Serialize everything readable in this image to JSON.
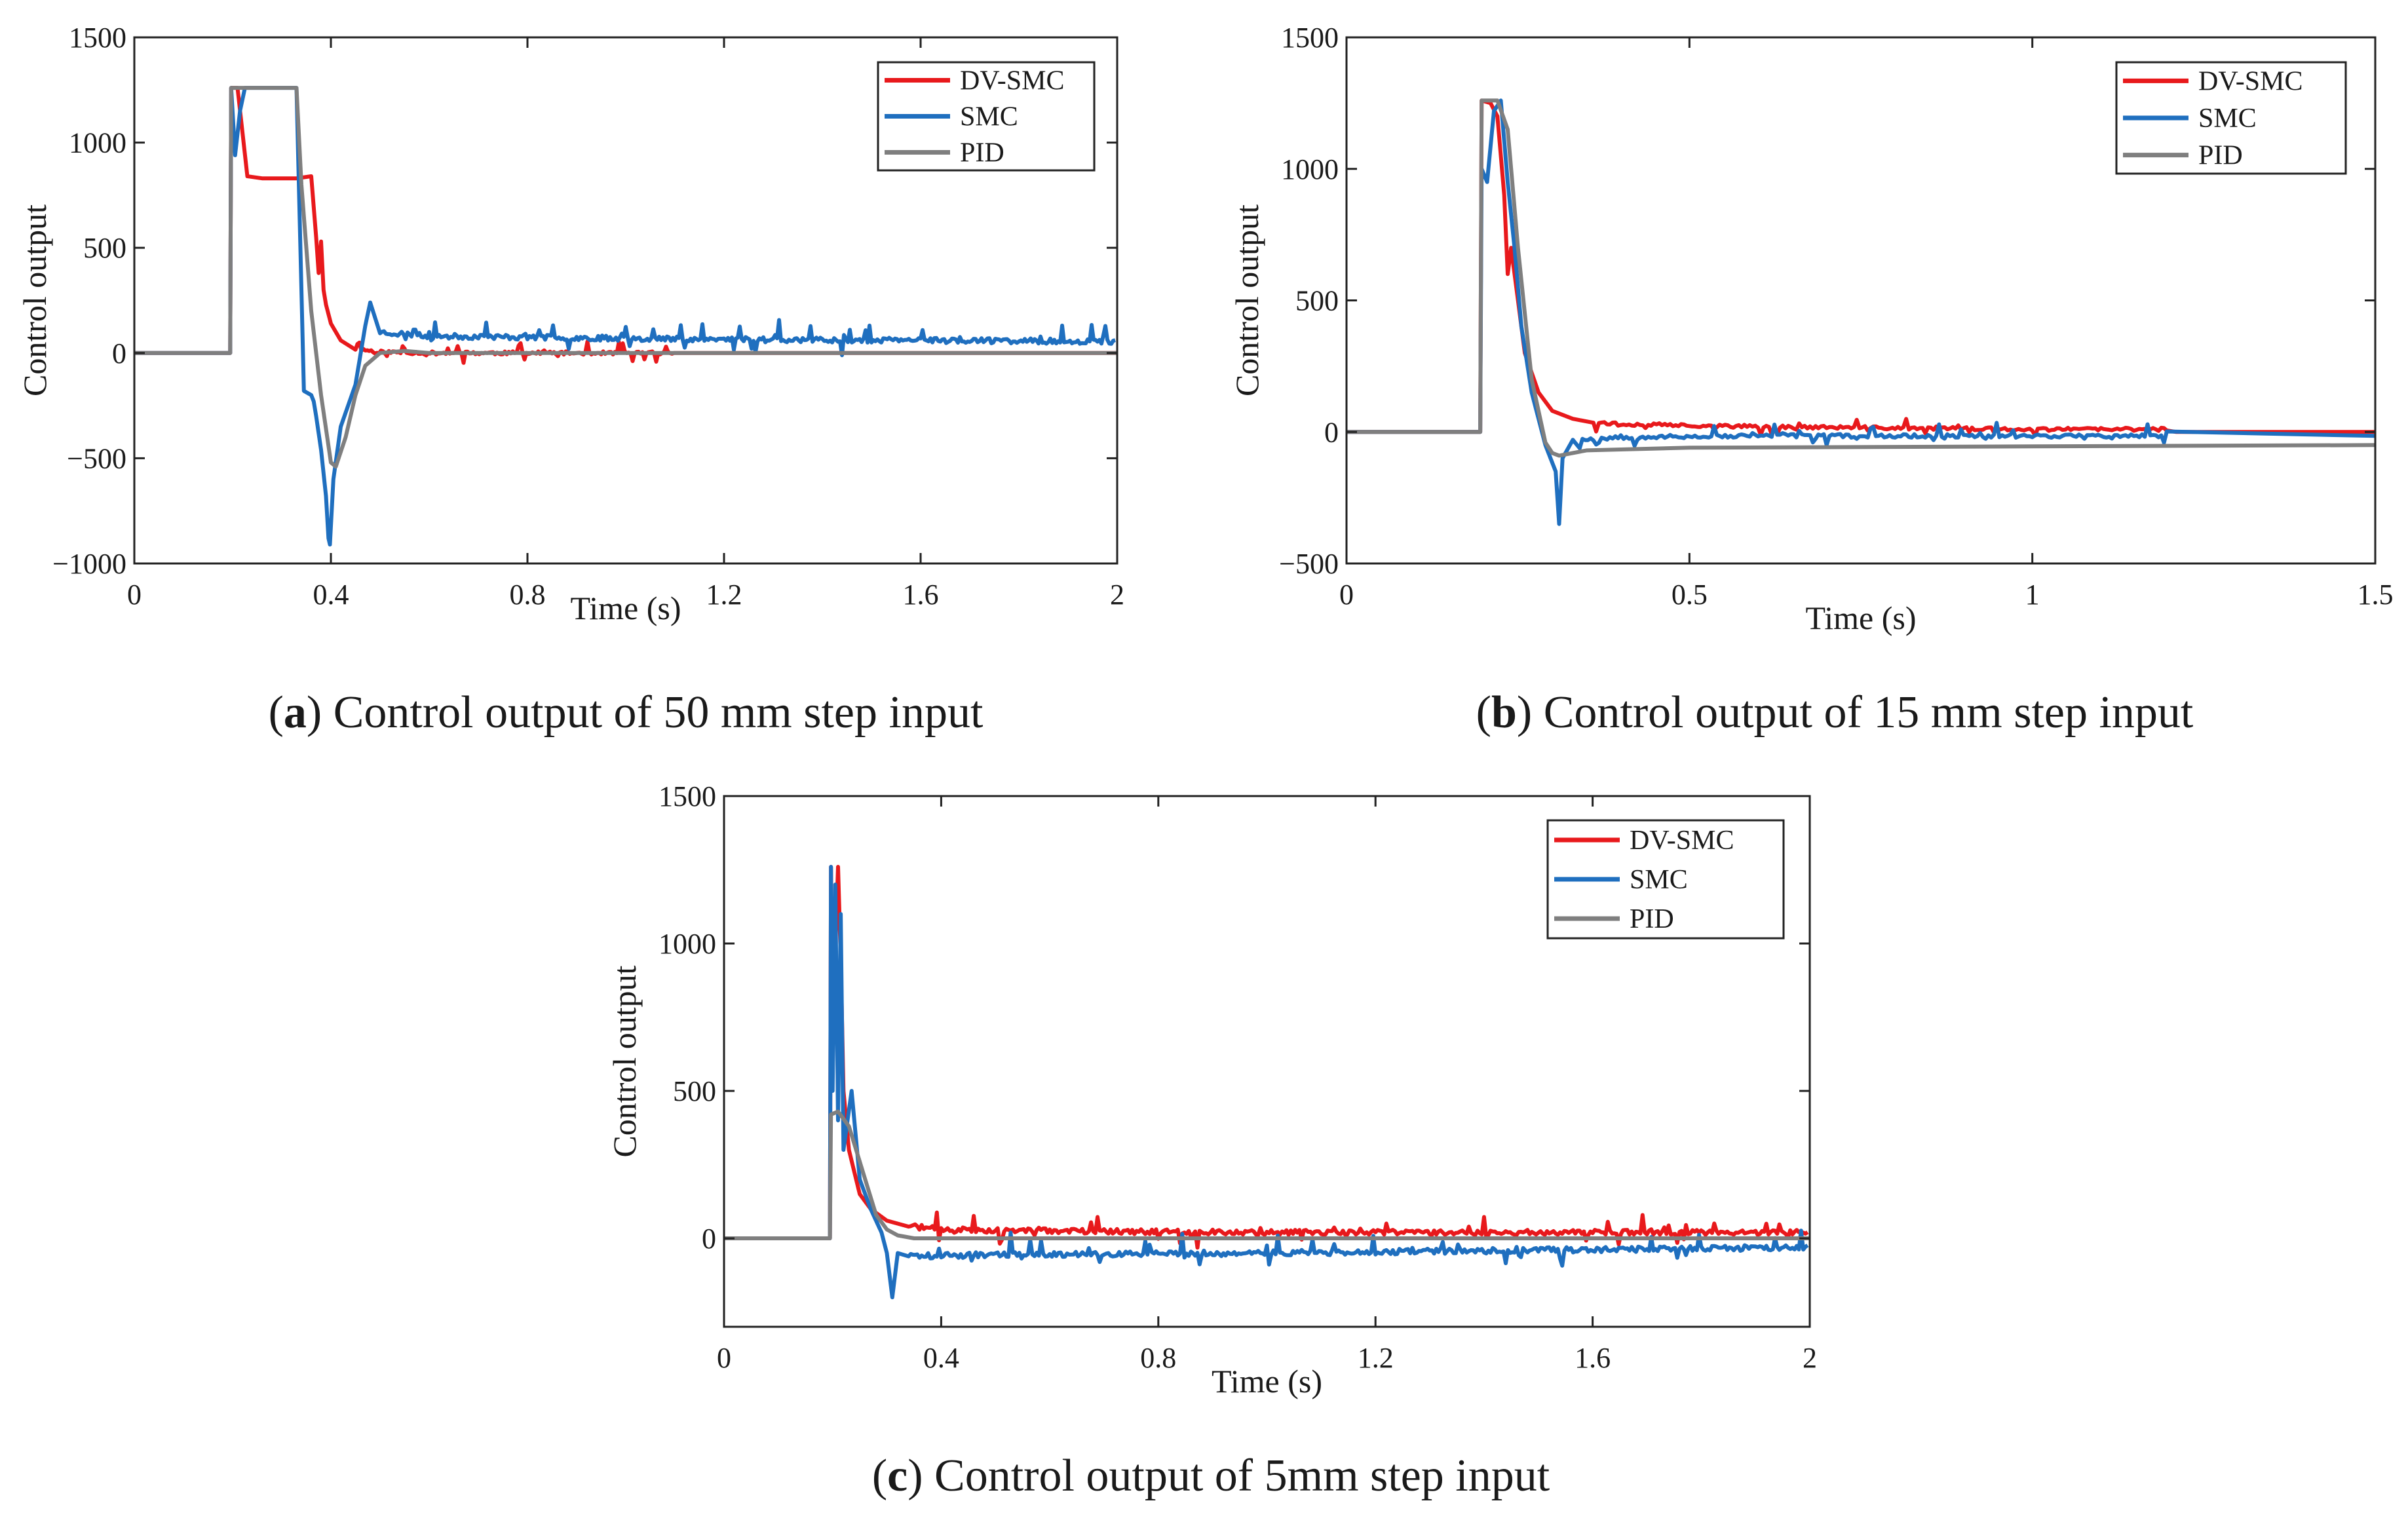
{
  "colors": {
    "dvsmc": "#e8191c",
    "smc": "#1f6fbf",
    "pid": "#7f7f7f",
    "axis": "#222222"
  },
  "chart_data": [
    {
      "type": "line",
      "panel_label": "a",
      "caption": "Control output of 50 mm step input",
      "xlabel": "Time (s)",
      "ylabel": "Control output",
      "xlim": [
        0,
        2
      ],
      "ylim": [
        -1000,
        1500
      ],
      "xticks": [
        0,
        0.4,
        0.8,
        1.2,
        1.6,
        2
      ],
      "xtick_labels": [
        "0",
        "0.4",
        "0.8",
        "1.2",
        "1.6",
        "2"
      ],
      "yticks": [
        -1000,
        -500,
        0,
        500,
        1000,
        1500
      ],
      "ytick_labels": [
        "−1000",
        "−500",
        "0",
        "500",
        "1000",
        "1500"
      ],
      "legend": [
        "DV-SMC",
        "SMC",
        "PID"
      ],
      "legend_position": "top-right",
      "series": [
        {
          "name": "DV-SMC",
          "color_key": "dvsmc",
          "x": [
            0,
            0.195,
            0.197,
            0.21,
            0.23,
            0.26,
            0.3,
            0.33,
            0.36,
            0.37,
            0.375,
            0.38,
            0.385,
            0.39,
            0.4,
            0.42,
            0.45,
            0.5,
            0.6,
            0.8,
            1.0,
            1.2,
            1.6,
            2.0
          ],
          "y": [
            0,
            0,
            1260,
            1260,
            840,
            830,
            830,
            830,
            840,
            550,
            380,
            530,
            300,
            230,
            140,
            60,
            20,
            5,
            0,
            0,
            0,
            0,
            0,
            0
          ],
          "noise": {
            "start": 0.45,
            "end": 1.1,
            "amp": 45,
            "seed": 11
          }
        },
        {
          "name": "SMC",
          "color_key": "smc",
          "x": [
            0,
            0.195,
            0.197,
            0.205,
            0.215,
            0.225,
            0.235,
            0.33,
            0.345,
            0.36,
            0.365,
            0.37,
            0.38,
            0.39,
            0.395,
            0.398,
            0.405,
            0.42,
            0.45,
            0.47,
            0.48,
            0.5,
            0.6,
            0.8,
            1.0,
            1.2,
            1.6,
            2.0
          ],
          "y": [
            0,
            0,
            1260,
            940,
            1150,
            1260,
            1260,
            1260,
            -180,
            -200,
            -230,
            -300,
            -460,
            -680,
            -880,
            -910,
            -600,
            -350,
            -150,
            130,
            240,
            100,
            80,
            75,
            70,
            65,
            60,
            55
          ],
          "noise": {
            "start": 0.5,
            "end": 2.0,
            "amp": 70,
            "seed": 23
          }
        },
        {
          "name": "PID",
          "color_key": "pid",
          "x": [
            0,
            0.195,
            0.197,
            0.33,
            0.34,
            0.36,
            0.38,
            0.4,
            0.41,
            0.43,
            0.45,
            0.47,
            0.5,
            0.55,
            0.6,
            1.0,
            2.0
          ],
          "y": [
            0,
            0,
            1260,
            1260,
            800,
            200,
            -200,
            -520,
            -540,
            -400,
            -200,
            -60,
            0,
            10,
            0,
            0,
            0
          ]
        }
      ]
    },
    {
      "type": "line",
      "panel_label": "b",
      "caption": "Control output of 15 mm step input",
      "xlabel": "Time (s)",
      "ylabel": "Control output",
      "xlim": [
        0,
        1.5
      ],
      "ylim": [
        -500,
        1500
      ],
      "xticks": [
        0,
        0.5,
        1,
        1.5
      ],
      "xtick_labels": [
        "0",
        "0.5",
        "1",
        "1.5"
      ],
      "yticks": [
        -500,
        0,
        500,
        1000,
        1500
      ],
      "ytick_labels": [
        "−500",
        "0",
        "500",
        "1000",
        "1500"
      ],
      "legend": [
        "DV-SMC",
        "SMC",
        "PID"
      ],
      "legend_position": "top-right",
      "series": [
        {
          "name": "DV-SMC",
          "color_key": "dvsmc",
          "x": [
            0,
            0.195,
            0.197,
            0.21,
            0.22,
            0.23,
            0.235,
            0.24,
            0.25,
            0.26,
            0.28,
            0.3,
            0.33,
            0.35,
            0.4,
            0.6,
            1.0,
            1.2,
            1.21,
            1.5
          ],
          "y": [
            0,
            0,
            1260,
            1250,
            1200,
            900,
            600,
            700,
            500,
            300,
            150,
            80,
            50,
            40,
            30,
            20,
            10,
            10,
            0,
            0
          ],
          "noise": {
            "start": 0.36,
            "end": 1.2,
            "amp": 35,
            "seed": 37
          }
        },
        {
          "name": "SMC",
          "color_key": "smc",
          "x": [
            0,
            0.195,
            0.197,
            0.205,
            0.215,
            0.225,
            0.235,
            0.245,
            0.255,
            0.27,
            0.29,
            0.305,
            0.31,
            0.315,
            0.33,
            0.4,
            0.6,
            1.0,
            1.5
          ],
          "y": [
            0,
            0,
            1000,
            950,
            1220,
            1260,
            950,
            700,
            400,
            150,
            -50,
            -150,
            -350,
            -100,
            -30,
            -20,
            -15,
            -15,
            -15
          ],
          "noise": {
            "start": 0.34,
            "end": 1.2,
            "amp": 40,
            "seed": 53
          }
        },
        {
          "name": "PID",
          "color_key": "pid",
          "x": [
            0,
            0.195,
            0.197,
            0.22,
            0.235,
            0.25,
            0.27,
            0.29,
            0.3,
            0.31,
            0.32,
            0.35,
            0.5,
            1.0,
            1.5
          ],
          "y": [
            0,
            0,
            1260,
            1260,
            1150,
            700,
            200,
            -40,
            -80,
            -90,
            -85,
            -70,
            -60,
            -55,
            -50
          ]
        }
      ]
    },
    {
      "type": "line",
      "panel_label": "c",
      "caption": "Control output of 5mm step input",
      "xlabel": "Time (s)",
      "ylabel": "Control output",
      "xlim": [
        0,
        2
      ],
      "ylim": [
        -300,
        1500
      ],
      "xticks": [
        0,
        0.4,
        0.8,
        1.2,
        1.6,
        2
      ],
      "xtick_labels": [
        "0",
        "0.4",
        "0.8",
        "1.2",
        "1.6",
        "2"
      ],
      "yticks": [
        0,
        500,
        1000,
        1500
      ],
      "ytick_labels": [
        "0",
        "500",
        "1000",
        "1500"
      ],
      "legend": [
        "DV-SMC",
        "SMC",
        "PID"
      ],
      "legend_position": "top-right",
      "series": [
        {
          "name": "DV-SMC",
          "color_key": "dvsmc",
          "x": [
            0,
            0.195,
            0.197,
            0.2,
            0.21,
            0.215,
            0.22,
            0.23,
            0.25,
            0.27,
            0.3,
            0.35,
            0.4,
            0.6,
            1.0,
            1.4,
            2.0
          ],
          "y": [
            0,
            0,
            1260,
            700,
            1260,
            950,
            500,
            300,
            150,
            100,
            60,
            40,
            30,
            25,
            20,
            20,
            20
          ],
          "noise": {
            "start": 0.34,
            "end": 2.0,
            "amp": 50,
            "seed": 71
          }
        },
        {
          "name": "SMC",
          "color_key": "smc",
          "x": [
            0,
            0.195,
            0.197,
            0.2,
            0.205,
            0.21,
            0.215,
            0.22,
            0.235,
            0.25,
            0.27,
            0.29,
            0.3,
            0.31,
            0.32,
            0.35,
            0.5,
            1.0,
            1.5,
            2.0
          ],
          "y": [
            0,
            0,
            1260,
            500,
            1200,
            400,
            1100,
            300,
            500,
            200,
            100,
            20,
            -50,
            -200,
            -50,
            -60,
            -55,
            -50,
            -40,
            -30
          ],
          "noise": {
            "start": 0.34,
            "end": 2.0,
            "amp": 55,
            "seed": 89
          }
        },
        {
          "name": "PID",
          "color_key": "pid",
          "x": [
            0,
            0.195,
            0.197,
            0.21,
            0.23,
            0.26,
            0.28,
            0.3,
            0.32,
            0.35,
            0.5,
            1.0,
            2.0
          ],
          "y": [
            0,
            0,
            420,
            430,
            380,
            200,
            80,
            30,
            10,
            0,
            0,
            0,
            0
          ]
        }
      ]
    }
  ]
}
